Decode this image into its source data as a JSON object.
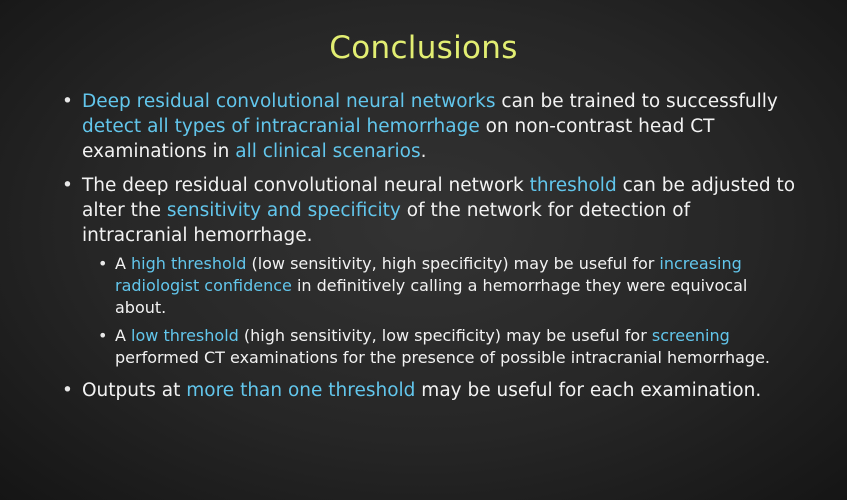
{
  "title": "Conclusions",
  "colors": {
    "title": "#e2ee72",
    "highlight": "#62c6ec",
    "text": "#f2f2f2",
    "background": "#2a2a2a"
  },
  "bullets": [
    {
      "segments": [
        {
          "text": "Deep residual convolutional neural networks",
          "hl": true
        },
        {
          "text": " can be trained to successfully ",
          "hl": false
        },
        {
          "text": "detect all types of intracranial hemorrhage",
          "hl": true
        },
        {
          "text": " on non-contrast head CT examinations in ",
          "hl": false
        },
        {
          "text": "all clinical scenarios",
          "hl": true
        },
        {
          "text": ".",
          "hl": false
        }
      ]
    },
    {
      "segments": [
        {
          "text": "The deep residual convolutional neural network ",
          "hl": false
        },
        {
          "text": "threshold",
          "hl": true
        },
        {
          "text": " can be adjusted to alter the ",
          "hl": false
        },
        {
          "text": "sensitivity and specificity",
          "hl": true
        },
        {
          "text": " of the network for detection of intracranial hemorrhage.",
          "hl": false
        }
      ],
      "sub": [
        {
          "segments": [
            {
              "text": "A ",
              "hl": false
            },
            {
              "text": "high threshold",
              "hl": true
            },
            {
              "text": " (low sensitivity, high specificity) may be useful for ",
              "hl": false
            },
            {
              "text": "increasing radiologist confidence",
              "hl": true
            },
            {
              "text": " in definitively calling a hemorrhage they were equivocal about.",
              "hl": false
            }
          ]
        },
        {
          "segments": [
            {
              "text": "A ",
              "hl": false
            },
            {
              "text": "low threshold",
              "hl": true
            },
            {
              "text": " (high sensitivity, low specificity) may be useful for ",
              "hl": false
            },
            {
              "text": "screening",
              "hl": true
            },
            {
              "text": " performed CT examinations for the presence of possible intracranial hemorrhage.",
              "hl": false
            }
          ]
        }
      ]
    },
    {
      "segments": [
        {
          "text": "Outputs at ",
          "hl": false
        },
        {
          "text": "more than one threshold",
          "hl": true
        },
        {
          "text": " may be useful for each examination.",
          "hl": false
        }
      ]
    }
  ]
}
